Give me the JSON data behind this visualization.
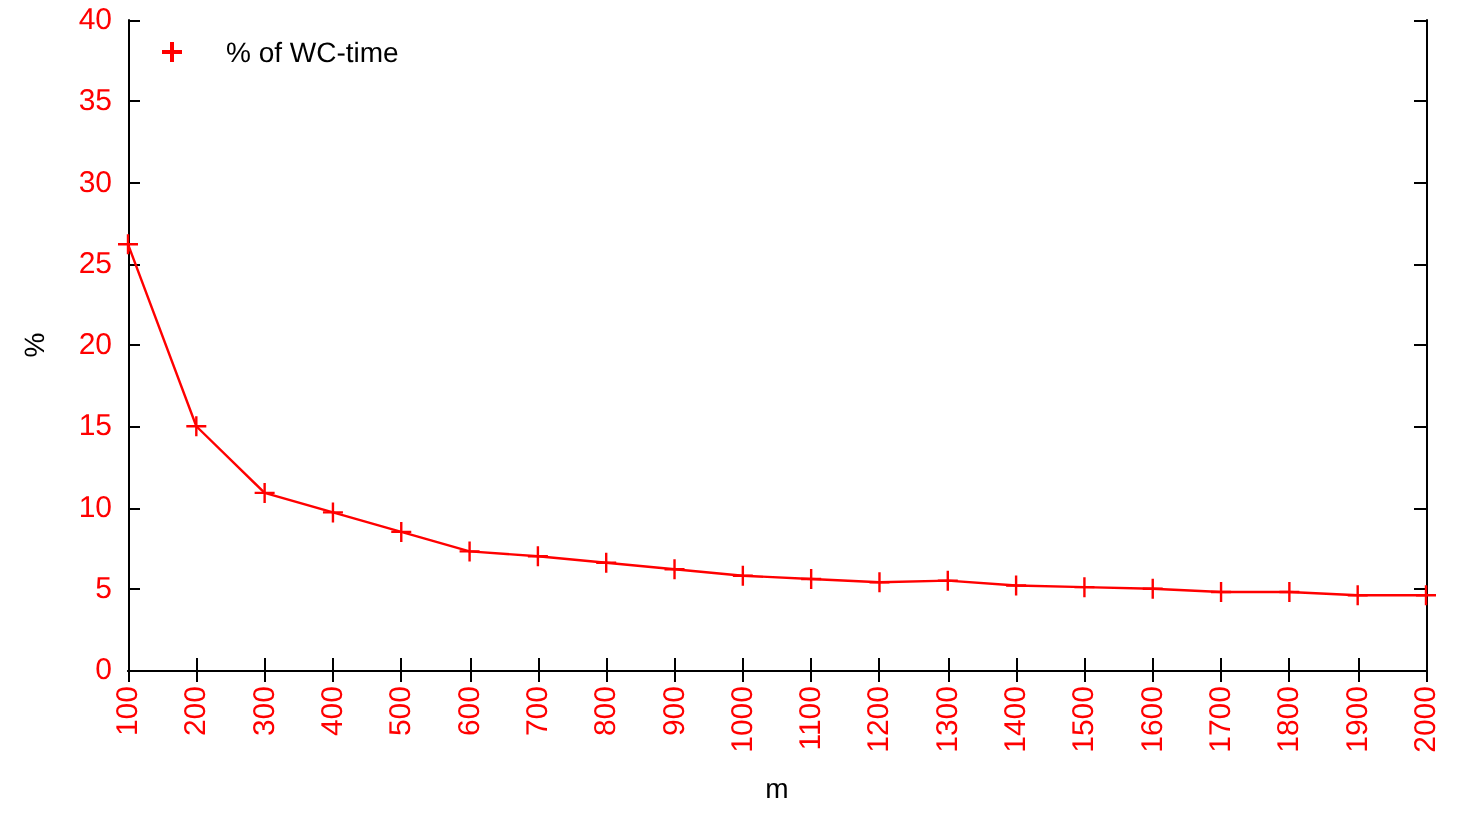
{
  "chart_data": {
    "type": "line",
    "xlabel": "m",
    "ylabel": "%",
    "x": [
      100,
      200,
      300,
      400,
      500,
      600,
      700,
      800,
      900,
      1000,
      1100,
      1200,
      1300,
      1400,
      1500,
      1600,
      1700,
      1800,
      1900,
      2000
    ],
    "series": [
      {
        "name": "% of WC-time",
        "color": "#ff0000",
        "values": [
          26.2,
          15.0,
          10.9,
          9.7,
          8.5,
          7.3,
          7.0,
          6.6,
          6.2,
          5.8,
          5.6,
          5.4,
          5.5,
          5.2,
          5.1,
          5.0,
          4.8,
          4.8,
          4.6,
          4.6
        ]
      }
    ],
    "xlim": [
      100,
      2000
    ],
    "xticks": [
      100,
      200,
      300,
      400,
      500,
      600,
      700,
      800,
      900,
      1000,
      1100,
      1200,
      1300,
      1400,
      1500,
      1600,
      1700,
      1800,
      1900,
      2000
    ],
    "ylim": [
      0,
      40
    ],
    "yticks": [
      0,
      5,
      10,
      15,
      20,
      25,
      30,
      35,
      40
    ],
    "grid": false,
    "legend": "top left",
    "marker": "cross",
    "line_style": "solid"
  }
}
